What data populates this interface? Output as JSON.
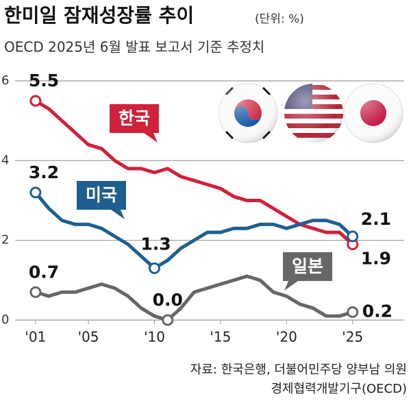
{
  "chart_data": {
    "type": "line",
    "title": "한미일 잠재성장률 추이",
    "unit_note": "(단위: %)",
    "subtitle": "OECD 2025년 6월 발표 보고서 기준 추정치",
    "source": [
      "자료: 한국은행, 더불어민주당 양부남 의원",
      "경제협력개발기구(OECD)"
    ],
    "x": [
      2001,
      2002,
      2003,
      2004,
      2005,
      2006,
      2007,
      2008,
      2009,
      2010,
      2011,
      2012,
      2013,
      2014,
      2015,
      2016,
      2017,
      2018,
      2019,
      2020,
      2021,
      2022,
      2023,
      2024,
      2025
    ],
    "series": [
      {
        "name": "한국",
        "color": "#d0213a",
        "values": [
          5.5,
          5.3,
          5.0,
          4.7,
          4.4,
          4.3,
          4.0,
          3.8,
          3.8,
          3.7,
          3.8,
          3.6,
          3.5,
          3.4,
          3.3,
          3.1,
          3.0,
          3.0,
          2.8,
          2.6,
          2.4,
          2.3,
          2.2,
          2.2,
          1.9
        ],
        "value_labels": [
          "5.5",
          null,
          null,
          null,
          null,
          null,
          null,
          null,
          null,
          null,
          null,
          null,
          null,
          null,
          null,
          null,
          null,
          null,
          null,
          null,
          null,
          null,
          null,
          null,
          "1.9"
        ]
      },
      {
        "name": "미국",
        "color": "#1f5f8f",
        "values": [
          3.2,
          2.8,
          2.5,
          2.4,
          2.4,
          2.3,
          2.1,
          1.9,
          1.6,
          1.3,
          1.5,
          1.8,
          2.0,
          2.2,
          2.2,
          2.3,
          2.3,
          2.4,
          2.4,
          2.3,
          2.4,
          2.5,
          2.5,
          2.4,
          2.1
        ],
        "value_labels": [
          "3.2",
          null,
          null,
          null,
          null,
          null,
          null,
          null,
          null,
          "1.3",
          null,
          null,
          null,
          null,
          null,
          null,
          null,
          null,
          null,
          null,
          null,
          null,
          null,
          null,
          "2.1"
        ]
      },
      {
        "name": "일본",
        "color": "#666666",
        "values": [
          0.7,
          0.6,
          0.7,
          0.7,
          0.8,
          0.9,
          0.8,
          0.6,
          0.3,
          0.1,
          0.0,
          0.3,
          0.7,
          0.8,
          0.9,
          1.0,
          1.1,
          1.0,
          0.7,
          0.6,
          0.4,
          0.3,
          0.1,
          0.1,
          0.2
        ],
        "value_labels": [
          "0.7",
          null,
          null,
          null,
          null,
          null,
          null,
          null,
          null,
          null,
          "0.0",
          null,
          null,
          null,
          null,
          null,
          null,
          null,
          null,
          null,
          null,
          null,
          null,
          null,
          "0.2"
        ]
      }
    ],
    "xlim": [
      1999.45,
      2028.9
    ],
    "xticks": [
      {
        "value": 2001,
        "label": "'01"
      },
      {
        "value": 2005,
        "label": "'05"
      },
      {
        "value": 2010,
        "label": "'10"
      },
      {
        "value": 2015,
        "label": "'15"
      },
      {
        "value": 2020,
        "label": "'20"
      },
      {
        "value": 2025,
        "label": "'25"
      }
    ],
    "ylim": [
      0,
      6
    ],
    "yticks": [
      0,
      2,
      4,
      6
    ],
    "grid": true
  }
}
